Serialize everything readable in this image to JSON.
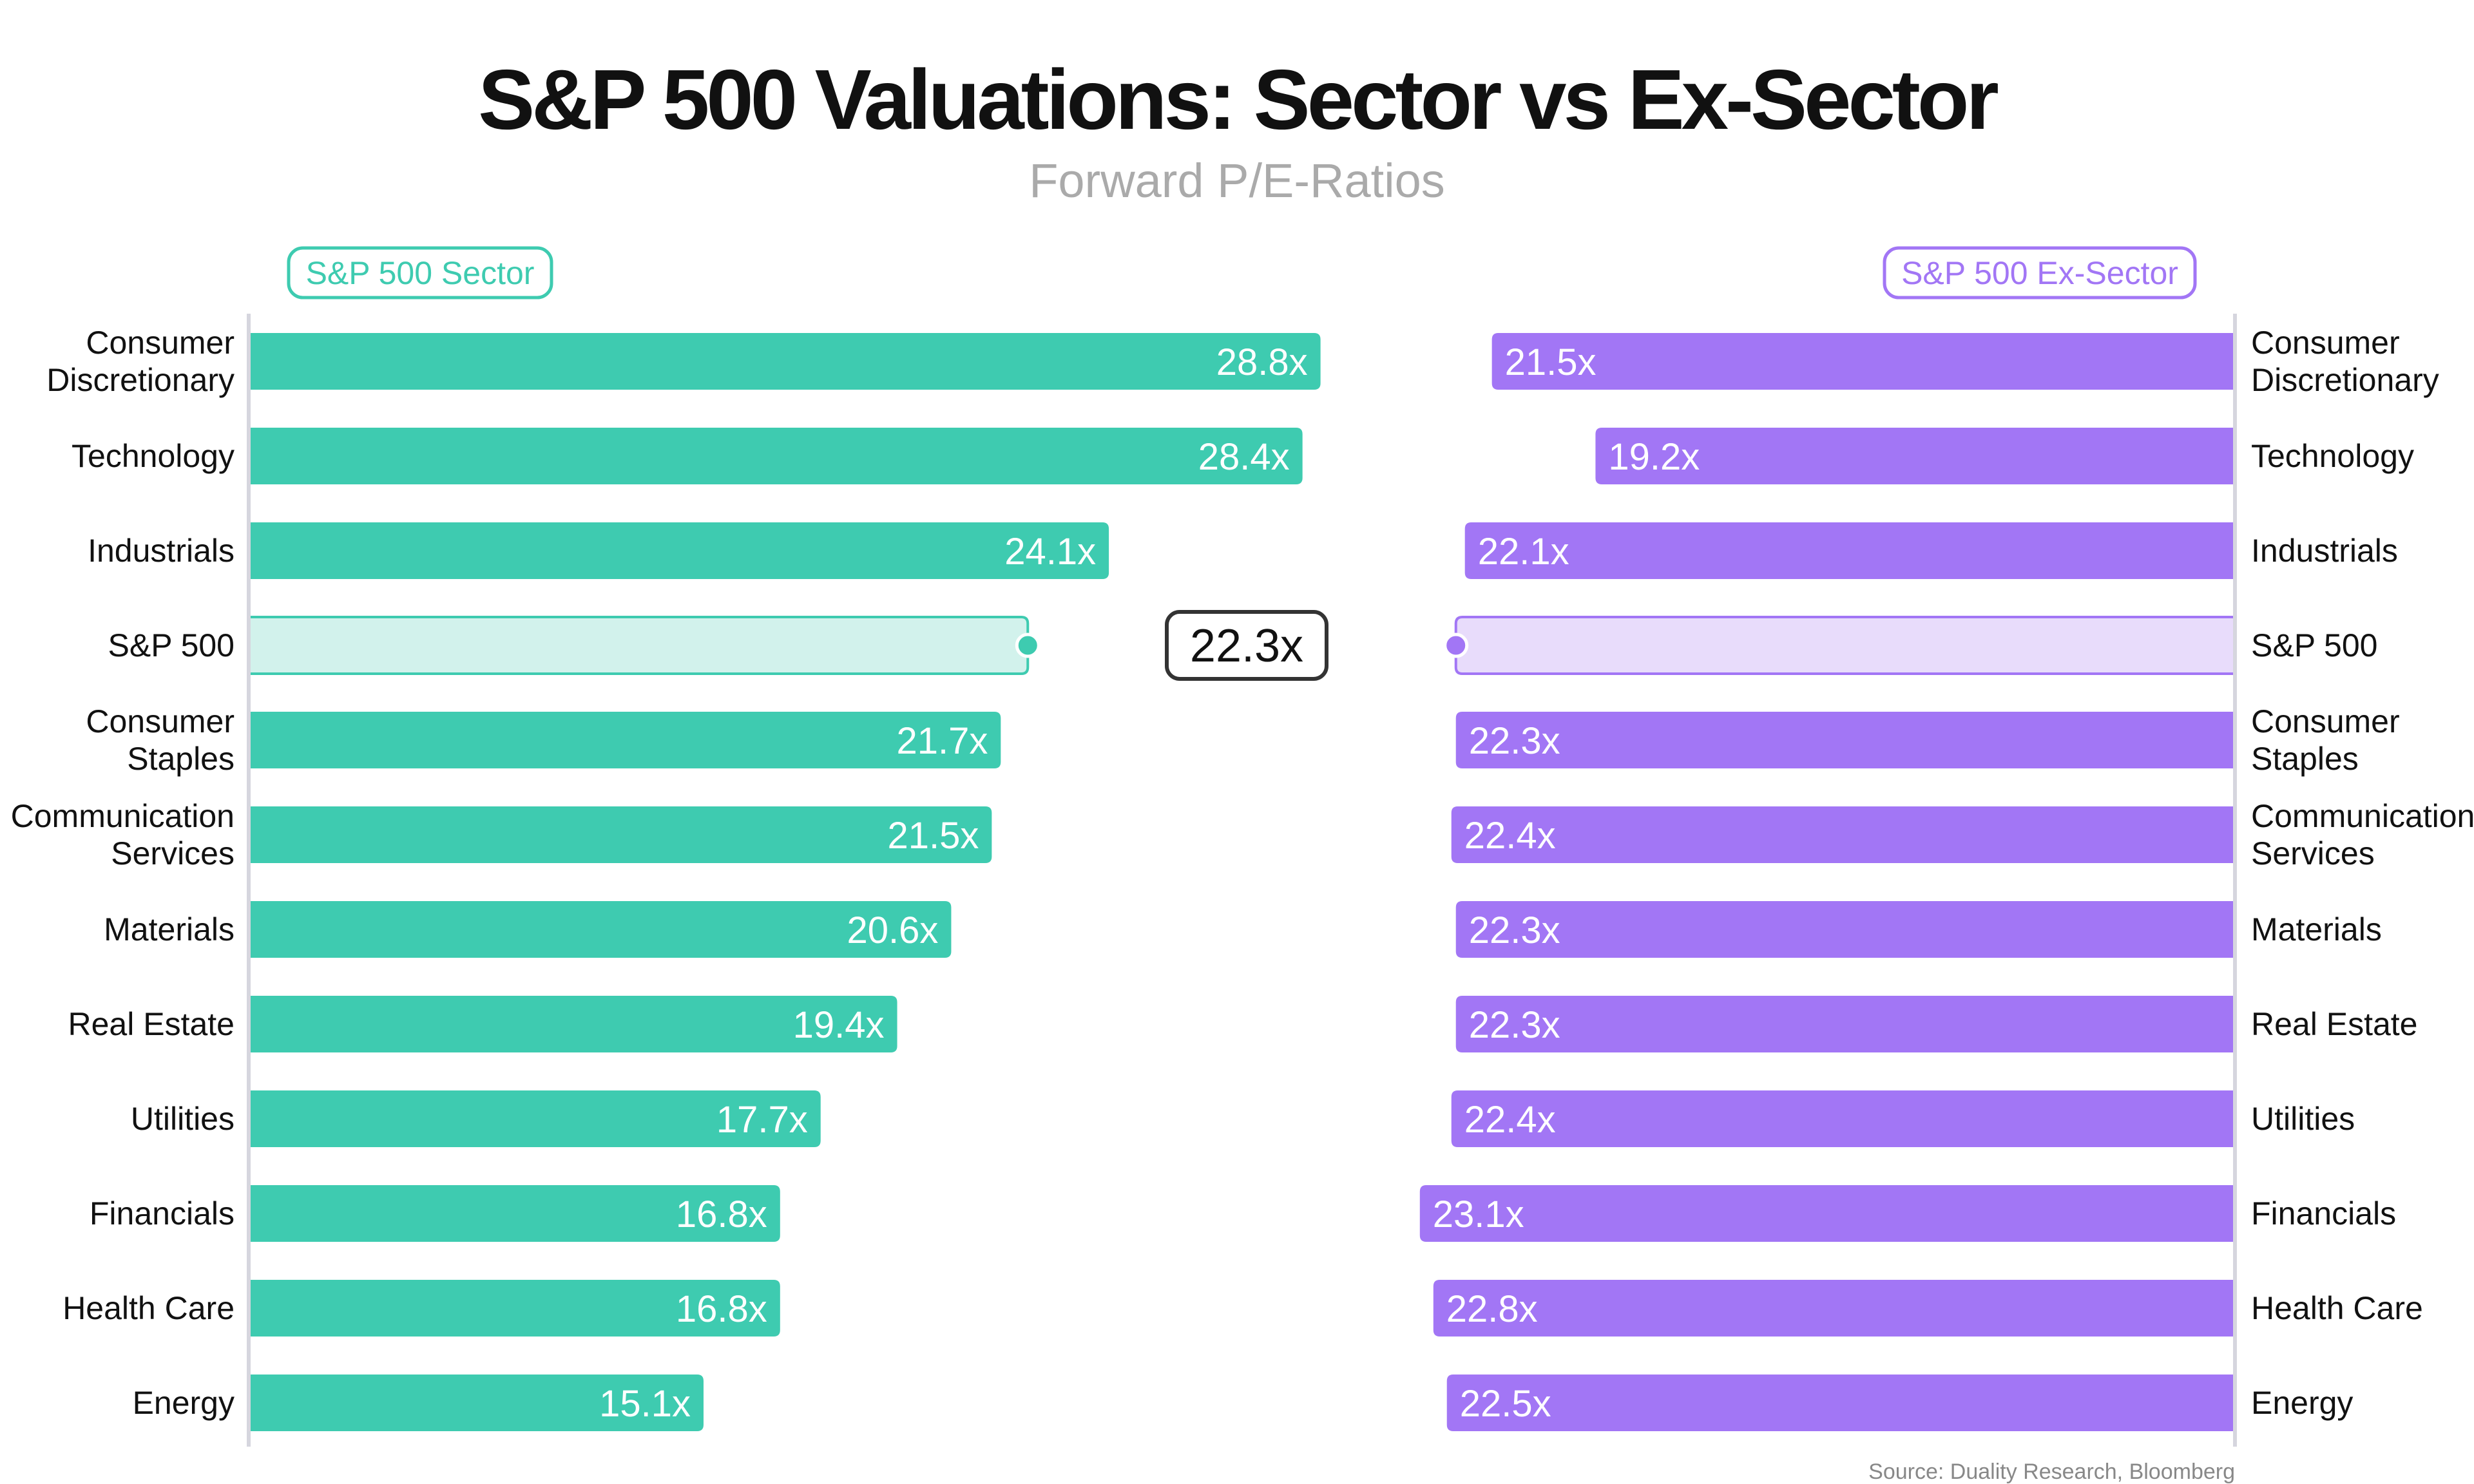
{
  "chart_data": {
    "type": "bar",
    "title": "S&P 500 Valuations: Sector vs Ex-Sector",
    "subtitle": "Forward P/E-Ratios",
    "source": "Source: Duality Research, Bloomberg",
    "value_suffix": "x",
    "axis_min": 5,
    "highlight_category": "S&P 500",
    "highlight_value_label": "22.3x",
    "colors": {
      "sector": "#3ecbb0",
      "ex_sector": "#a276f5",
      "sector_light": "#d2f2ec",
      "ex_sector_light": "#e8dcfb",
      "axis": "#d6d6de"
    },
    "categories": [
      [
        "Consumer",
        "Discretionary"
      ],
      [
        "Technology"
      ],
      [
        "Industrials"
      ],
      [
        "S&P 500"
      ],
      [
        "Consumer",
        "Staples"
      ],
      [
        "Communication",
        "Services"
      ],
      [
        "Materials"
      ],
      [
        "Real Estate"
      ],
      [
        "Utilities"
      ],
      [
        "Financials"
      ],
      [
        "Health Care"
      ],
      [
        "Energy"
      ]
    ],
    "series": [
      {
        "name": "S&P 500 Sector",
        "values": [
          28.8,
          28.4,
          24.1,
          22.3,
          21.7,
          21.5,
          20.6,
          19.4,
          17.7,
          16.8,
          16.8,
          15.1
        ]
      },
      {
        "name": "S&P 500 Ex-Sector",
        "values": [
          21.5,
          19.2,
          22.1,
          22.3,
          22.3,
          22.4,
          22.3,
          22.3,
          22.4,
          23.1,
          22.8,
          22.5
        ]
      }
    ]
  }
}
